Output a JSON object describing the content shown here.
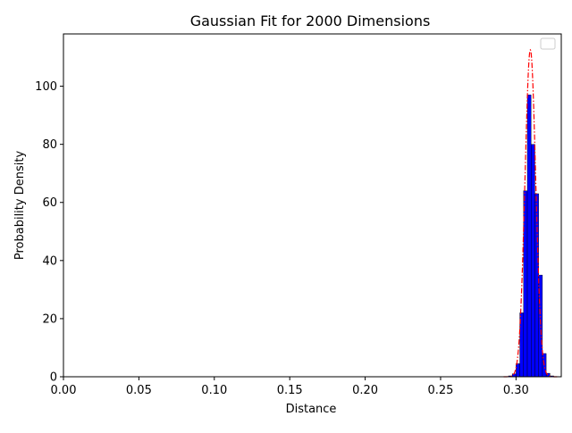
{
  "chart_data": {
    "type": "bar",
    "title": "Gaussian Fit for 2000 Dimensions",
    "xlabel": "Distance",
    "ylabel": "Probability Density",
    "xlim": [
      0.0,
      0.33
    ],
    "ylim": [
      0,
      118
    ],
    "xticks": [
      0.0,
      0.05,
      0.1,
      0.15,
      0.2,
      0.25,
      0.3
    ],
    "xtick_labels": [
      "0.00",
      "0.05",
      "0.10",
      "0.15",
      "0.20",
      "0.25",
      "0.30"
    ],
    "yticks": [
      0,
      20,
      40,
      60,
      80,
      100
    ],
    "ytick_labels": [
      "0",
      "20",
      "40",
      "60",
      "80",
      "100"
    ],
    "grid": false,
    "legend": {
      "placement": "top-right",
      "entries": []
    },
    "histogram": {
      "color": "#0000ff",
      "bin_width": 0.0025,
      "bins": [
        {
          "x0": 0.295,
          "density": 0.3
        },
        {
          "x0": 0.2975,
          "density": 1
        },
        {
          "x0": 0.3,
          "density": 4.5
        },
        {
          "x0": 0.3025,
          "density": 22
        },
        {
          "x0": 0.305,
          "density": 64
        },
        {
          "x0": 0.3075,
          "density": 97
        },
        {
          "x0": 0.31,
          "density": 80
        },
        {
          "x0": 0.3125,
          "density": 63
        },
        {
          "x0": 0.315,
          "density": 35
        },
        {
          "x0": 0.3175,
          "density": 8
        },
        {
          "x0": 0.32,
          "density": 1.2
        },
        {
          "x0": 0.3225,
          "density": 0.3
        }
      ]
    },
    "fit": {
      "type": "gaussian",
      "color": "#ff0000",
      "style": "dash-dot",
      "mean": 0.3095,
      "std": 0.00355,
      "peak": 112.5
    }
  }
}
